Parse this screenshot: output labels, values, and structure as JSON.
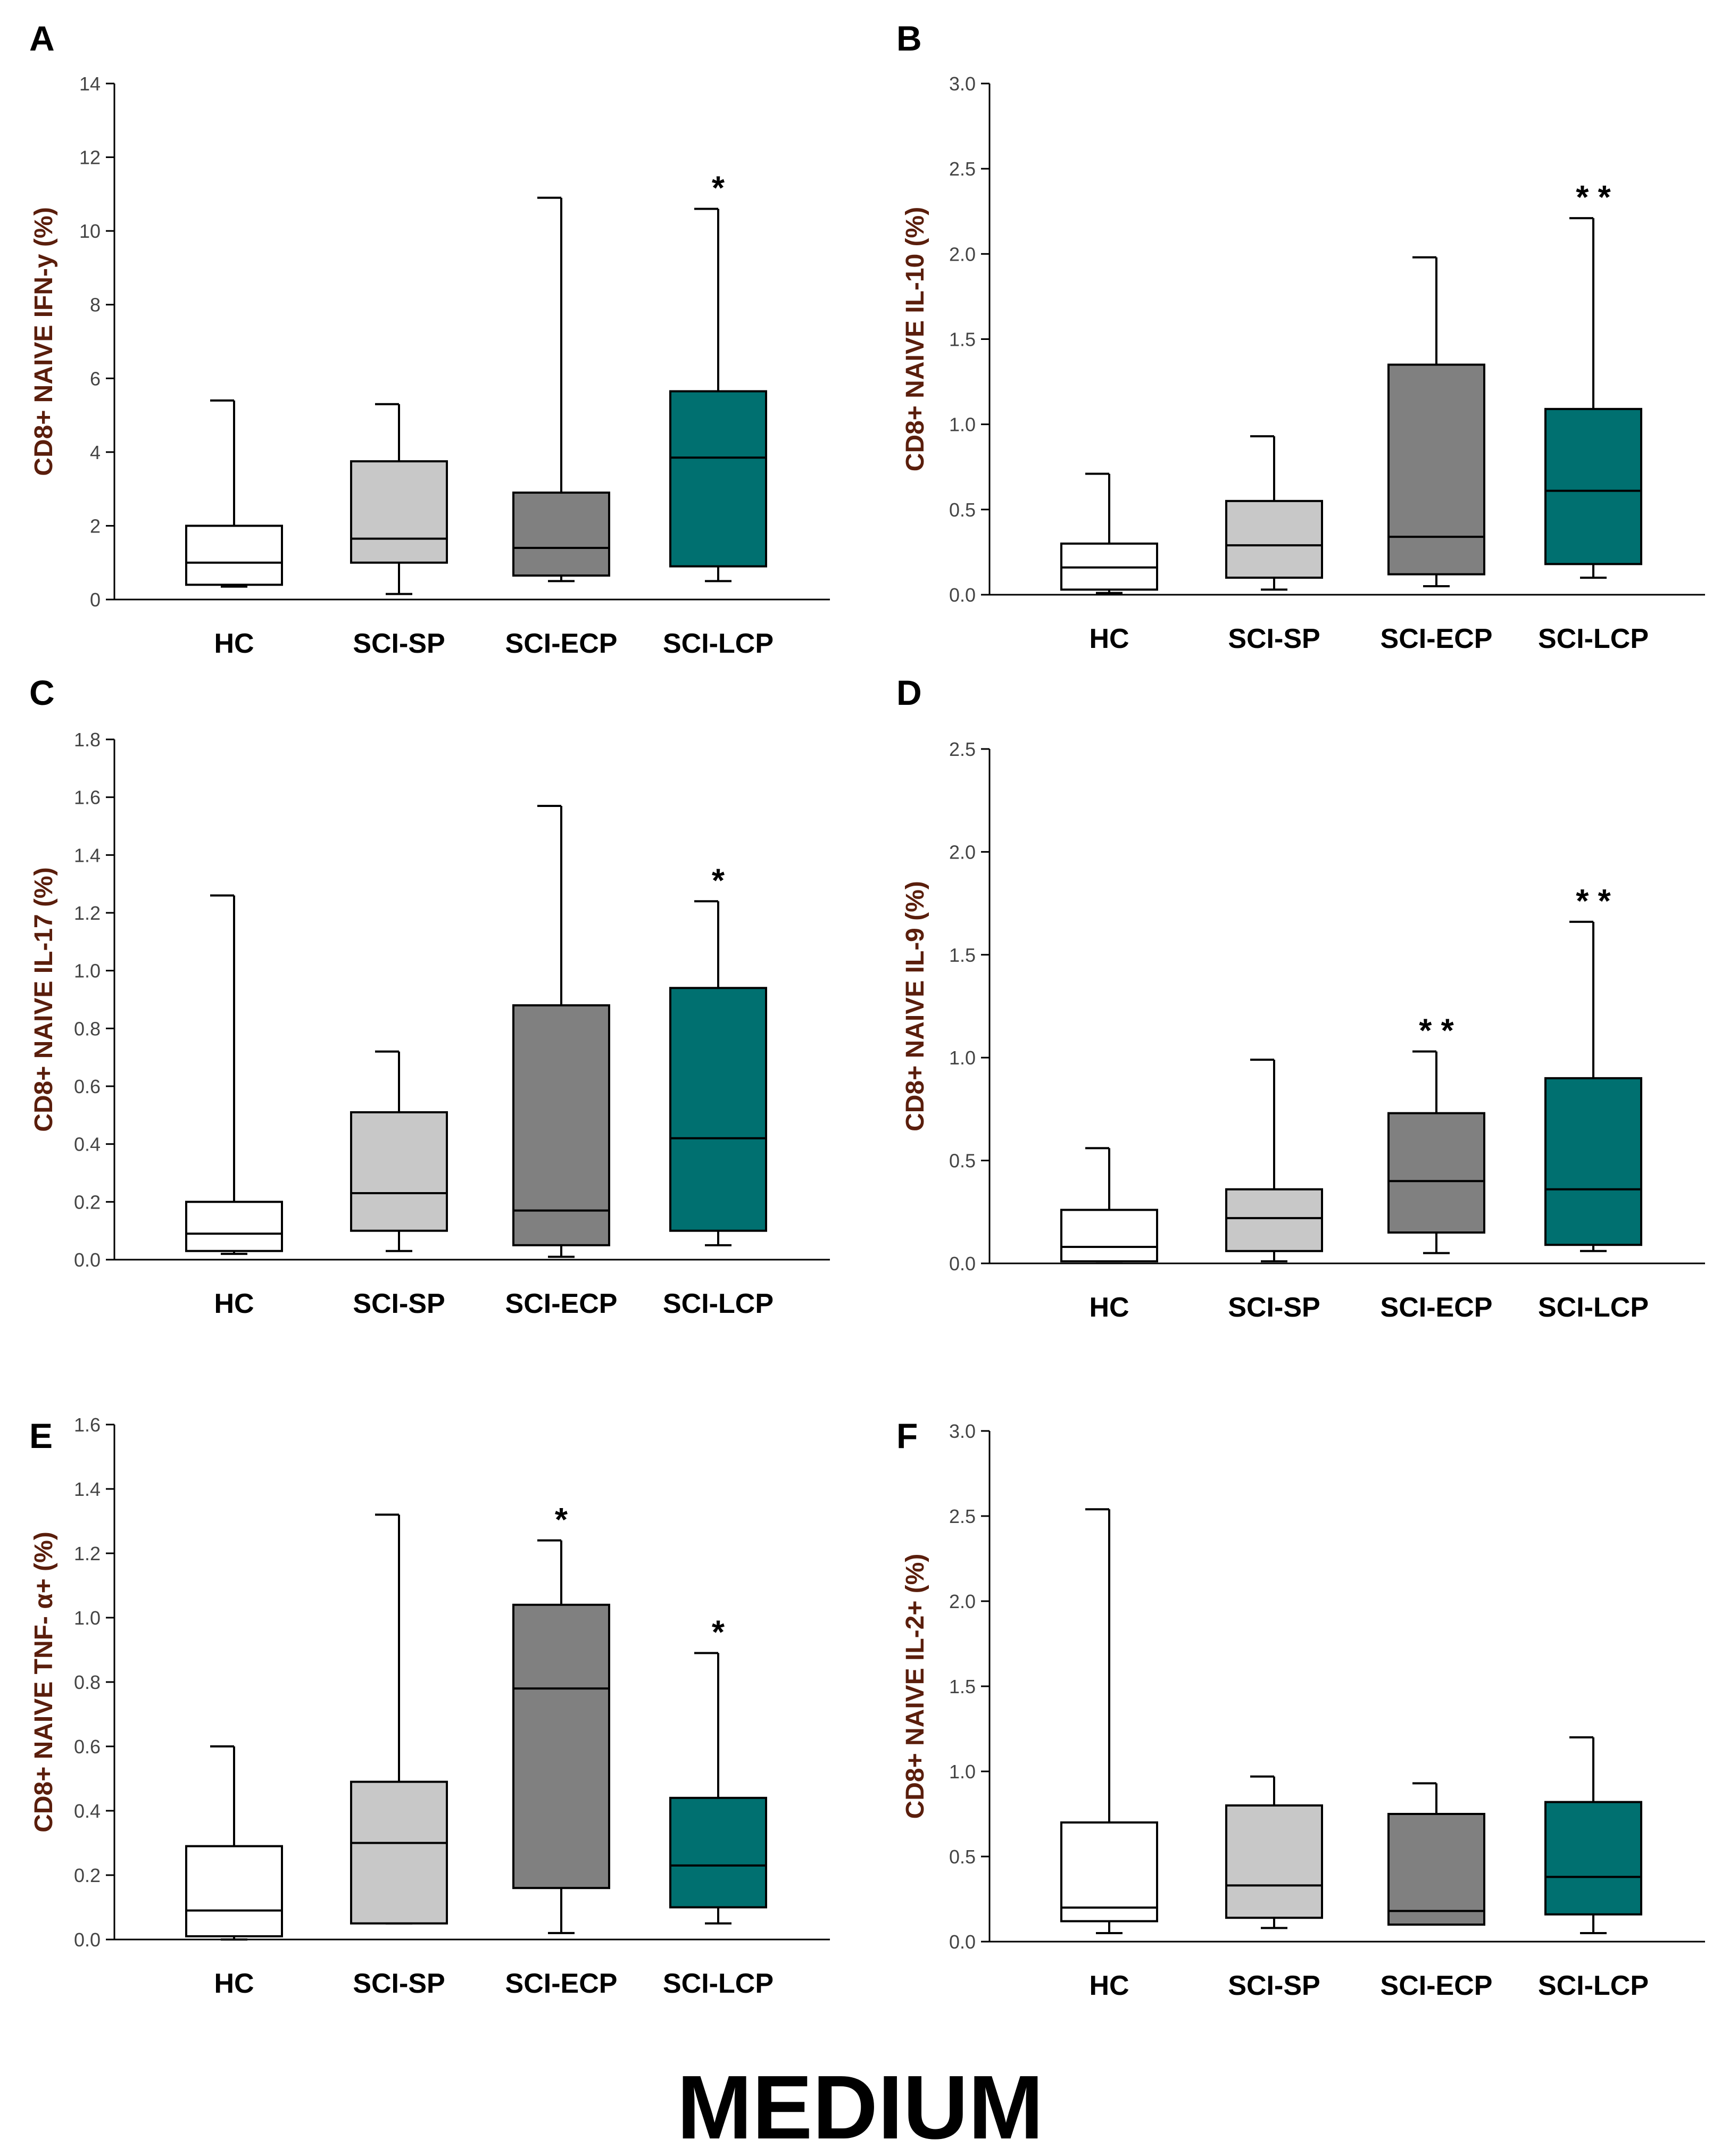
{
  "figure_title": "MEDIUM",
  "styles": {
    "box_colors": [
      "#ffffff",
      "#c8c8c8",
      "#808080",
      "#007070"
    ],
    "line_color": "#000000",
    "ylabel_color": "#5a1e0c"
  },
  "chart_data": [
    {
      "panel": "A",
      "type": "box",
      "ylabel": "CD8+ NAIVE IFN-y (%)",
      "categories": [
        "HC",
        "SCI-SP",
        "SCI-ECP",
        "SCI-LCP"
      ],
      "ylim": [
        0,
        14
      ],
      "yticks": [
        0,
        2,
        4,
        6,
        8,
        10,
        12,
        14
      ],
      "tick_labels": [
        "0",
        "2",
        "4",
        "6",
        "8",
        "10",
        "12",
        "14"
      ],
      "boxes": [
        {
          "whisker_low": 0.35,
          "q1": 0.4,
          "median": 1.0,
          "q3": 2.0,
          "whisker_high": 5.4,
          "sig": ""
        },
        {
          "whisker_low": 0.15,
          "q1": 1.0,
          "median": 1.65,
          "q3": 3.75,
          "whisker_high": 5.3,
          "sig": ""
        },
        {
          "whisker_low": 0.5,
          "q1": 0.65,
          "median": 1.4,
          "q3": 2.9,
          "whisker_high": 10.9,
          "sig": ""
        },
        {
          "whisker_low": 0.5,
          "q1": 0.9,
          "median": 3.85,
          "q3": 5.65,
          "whisker_high": 10.6,
          "sig": "*"
        }
      ]
    },
    {
      "panel": "B",
      "type": "box",
      "ylabel": "CD8+ NAIVE IL-10 (%)",
      "categories": [
        "HC",
        "SCI-SP",
        "SCI-ECP",
        "SCI-LCP"
      ],
      "ylim": [
        0,
        3.0
      ],
      "yticks": [
        0,
        0.5,
        1.0,
        1.5,
        2.0,
        2.5,
        3.0
      ],
      "tick_labels": [
        "0.0",
        "0.5",
        "1.0",
        "1.5",
        "2.0",
        "2.5",
        "3.0"
      ],
      "boxes": [
        {
          "whisker_low": 0.01,
          "q1": 0.03,
          "median": 0.16,
          "q3": 0.3,
          "whisker_high": 0.71,
          "sig": ""
        },
        {
          "whisker_low": 0.03,
          "q1": 0.1,
          "median": 0.29,
          "q3": 0.55,
          "whisker_high": 0.93,
          "sig": ""
        },
        {
          "whisker_low": 0.05,
          "q1": 0.12,
          "median": 0.34,
          "q3": 1.35,
          "whisker_high": 1.98,
          "sig": ""
        },
        {
          "whisker_low": 0.1,
          "q1": 0.18,
          "median": 0.61,
          "q3": 1.09,
          "whisker_high": 2.21,
          "sig": "**"
        }
      ]
    },
    {
      "panel": "C",
      "type": "box",
      "ylabel": "CD8+ NAIVE IL-17 (%)",
      "categories": [
        "HC",
        "SCI-SP",
        "SCI-ECP",
        "SCI-LCP"
      ],
      "ylim": [
        0,
        1.8
      ],
      "yticks": [
        0,
        0.2,
        0.4,
        0.6,
        0.8,
        1.0,
        1.2,
        1.4,
        1.6,
        1.8
      ],
      "tick_labels": [
        "0.0",
        "0.2",
        "0.4",
        "0.6",
        "0.8",
        "1.0",
        "1.2",
        "1.4",
        "1.6",
        "1.8"
      ],
      "boxes": [
        {
          "whisker_low": 0.02,
          "q1": 0.03,
          "median": 0.09,
          "q3": 0.2,
          "whisker_high": 1.26,
          "sig": ""
        },
        {
          "whisker_low": 0.03,
          "q1": 0.1,
          "median": 0.23,
          "q3": 0.51,
          "whisker_high": 0.72,
          "sig": ""
        },
        {
          "whisker_low": 0.01,
          "q1": 0.05,
          "median": 0.17,
          "q3": 0.88,
          "whisker_high": 1.57,
          "sig": ""
        },
        {
          "whisker_low": 0.05,
          "q1": 0.1,
          "median": 0.42,
          "q3": 0.94,
          "whisker_high": 1.24,
          "sig": "*"
        }
      ]
    },
    {
      "panel": "D",
      "type": "box",
      "ylabel": "CD8+ NAIVE IL-9 (%)",
      "categories": [
        "HC",
        "SCI-SP",
        "SCI-ECP",
        "SCI-LCP"
      ],
      "ylim": [
        0,
        2.5
      ],
      "yticks": [
        0,
        0.5,
        1.0,
        1.5,
        2.0,
        2.5
      ],
      "tick_labels": [
        "0.0",
        "0.5",
        "1.0",
        "1.5",
        "2.0",
        "2.5"
      ],
      "boxes": [
        {
          "whisker_low": 0.01,
          "q1": 0.01,
          "median": 0.08,
          "q3": 0.26,
          "whisker_high": 0.56,
          "sig": ""
        },
        {
          "whisker_low": 0.01,
          "q1": 0.06,
          "median": 0.22,
          "q3": 0.36,
          "whisker_high": 0.99,
          "sig": ""
        },
        {
          "whisker_low": 0.05,
          "q1": 0.15,
          "median": 0.4,
          "q3": 0.73,
          "whisker_high": 1.03,
          "sig": "**"
        },
        {
          "whisker_low": 0.06,
          "q1": 0.09,
          "median": 0.36,
          "q3": 0.9,
          "whisker_high": 1.66,
          "sig": "**"
        }
      ]
    },
    {
      "panel": "E",
      "type": "box",
      "ylabel": "CD8+ NAIVE TNF- α+ (%)",
      "categories": [
        "HC",
        "SCI-SP",
        "SCI-ECP",
        "SCI-LCP"
      ],
      "ylim": [
        0,
        1.6
      ],
      "yticks": [
        0,
        0.2,
        0.4,
        0.6,
        0.8,
        1.0,
        1.2,
        1.4,
        1.6
      ],
      "tick_labels": [
        "0.0",
        "0.2",
        "0.4",
        "0.6",
        "0.8",
        "1.0",
        "1.2",
        "1.4",
        "1.6"
      ],
      "boxes": [
        {
          "whisker_low": 0.0,
          "q1": 0.01,
          "median": 0.09,
          "q3": 0.29,
          "whisker_high": 0.6,
          "sig": ""
        },
        {
          "whisker_low": 0.05,
          "q1": 0.05,
          "median": 0.3,
          "q3": 0.49,
          "whisker_high": 1.32,
          "sig": ""
        },
        {
          "whisker_low": 0.02,
          "q1": 0.16,
          "median": 0.78,
          "q3": 1.04,
          "whisker_high": 1.24,
          "sig": "*"
        },
        {
          "whisker_low": 0.05,
          "q1": 0.1,
          "median": 0.23,
          "q3": 0.44,
          "whisker_high": 0.89,
          "sig": "*"
        }
      ]
    },
    {
      "panel": "F",
      "type": "box",
      "ylabel": "CD8+ NAIVE IL-2+ (%)",
      "categories": [
        "HC",
        "SCI-SP",
        "SCI-ECP",
        "SCI-LCP"
      ],
      "ylim": [
        0,
        3.0
      ],
      "yticks": [
        0,
        0.5,
        1.0,
        1.5,
        2.0,
        2.5,
        3.0
      ],
      "tick_labels": [
        "0.0",
        "0.5",
        "1.0",
        "1.5",
        "2.0",
        "2.5",
        "3.0"
      ],
      "boxes": [
        {
          "whisker_low": 0.05,
          "q1": 0.12,
          "median": 0.2,
          "q3": 0.7,
          "whisker_high": 2.54,
          "sig": ""
        },
        {
          "whisker_low": 0.08,
          "q1": 0.14,
          "median": 0.33,
          "q3": 0.8,
          "whisker_high": 0.97,
          "sig": ""
        },
        {
          "whisker_low": 0.1,
          "q1": 0.1,
          "median": 0.18,
          "q3": 0.75,
          "whisker_high": 0.93,
          "sig": ""
        },
        {
          "whisker_low": 0.05,
          "q1": 0.16,
          "median": 0.38,
          "q3": 0.82,
          "whisker_high": 1.2,
          "sig": ""
        }
      ]
    }
  ]
}
